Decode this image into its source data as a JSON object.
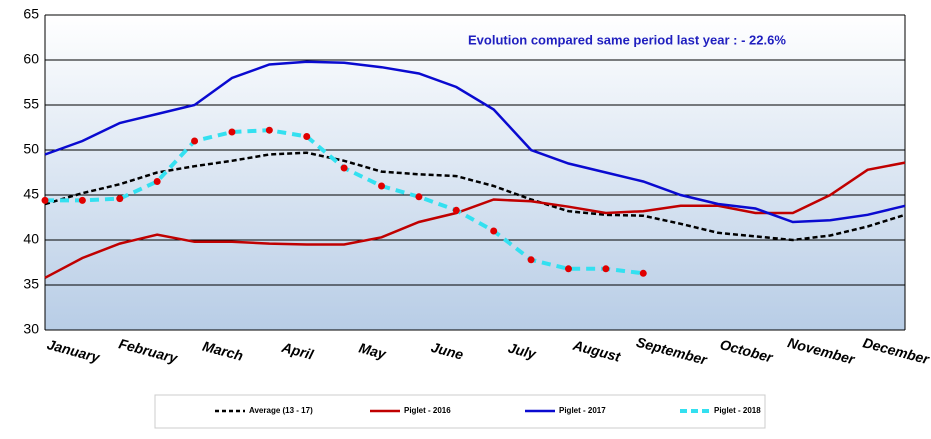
{
  "chart_data": {
    "type": "line",
    "annotation": "Evolution compared same period last year   : - 22.6%",
    "categories": [
      "January",
      null,
      "February",
      null,
      "March",
      null,
      "April",
      null,
      "May",
      null,
      "June",
      null,
      "July",
      null,
      "August",
      null,
      "September",
      null,
      "October",
      null,
      "November",
      null,
      "December",
      null
    ],
    "ylim": [
      30,
      65
    ],
    "yticks": [
      30,
      35,
      40,
      45,
      50,
      55,
      60,
      65
    ],
    "grid": true,
    "series": [
      {
        "name": "Average (13 - 17)",
        "color": "#000000",
        "dash": true,
        "values": [
          44,
          45.2,
          46.2,
          47.5,
          48.2,
          48.8,
          49.5,
          49.7,
          48.8,
          47.6,
          47.3,
          47.1,
          46,
          44.5,
          43.2,
          42.8,
          42.7,
          41.8,
          40.8,
          40.4,
          40,
          40.5,
          41.5,
          42.8
        ]
      },
      {
        "name": "Piglet - 2016",
        "color": "#c00000",
        "values": [
          35.8,
          38,
          39.6,
          40.6,
          39.8,
          39.8,
          39.6,
          39.5,
          39.5,
          40.3,
          42,
          43,
          44.5,
          44.3,
          43.7,
          43,
          43.2,
          43.8,
          43.8,
          43,
          43,
          45,
          47.8,
          48.6
        ]
      },
      {
        "name": "Piglet - 2017",
        "color": "#0a0ad0",
        "values": [
          49.5,
          51,
          53,
          54,
          55,
          58,
          59.5,
          59.8,
          59.7,
          59.2,
          58.5,
          57,
          54.5,
          50,
          48.5,
          47.5,
          46.5,
          45,
          44,
          43.5,
          42,
          42.2,
          42.8,
          43.8
        ]
      },
      {
        "name": "Piglet - 2018",
        "color": "#33e0f0",
        "dash": true,
        "marker_color": "#e00000",
        "values": [
          44.4,
          44.4,
          44.6,
          46.5,
          51,
          52,
          52.2,
          51.5,
          48,
          46,
          44.8,
          43.3,
          41,
          37.8,
          36.8,
          36.8,
          36.3,
          null,
          null,
          null,
          null,
          null,
          null,
          null
        ]
      }
    ]
  }
}
